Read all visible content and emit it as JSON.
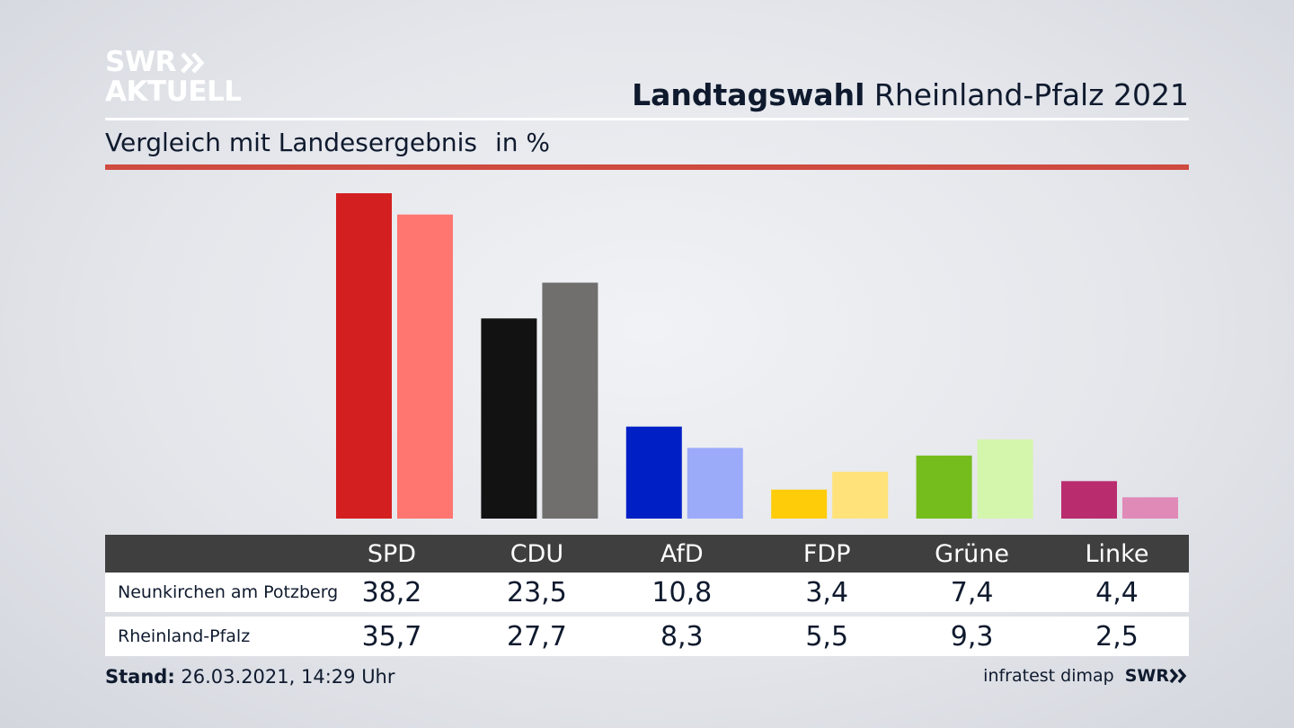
{
  "logo": {
    "line1": "SWR",
    "line2": "AKTUELL"
  },
  "header": {
    "title_bold": "Landtagswahl",
    "title_rest": "Rheinland-Pfalz 2021"
  },
  "subtitle": {
    "text": "Vergleich mit Landesergebnis",
    "unit": "in %"
  },
  "colors": {
    "SPD": [
      "#d41f21",
      "#ff7570"
    ],
    "CDU": [
      "#121212",
      "#706f6e"
    ],
    "AfD": [
      "#0020c6",
      "#9caafa"
    ],
    "FDP": [
      "#ffcc0a",
      "#ffe27a"
    ],
    "Grüne": [
      "#75bd1d",
      "#d4f5ac"
    ],
    "Linke": [
      "#b92d6f",
      "#e08ab8"
    ]
  },
  "chart_data": {
    "type": "bar",
    "categories": [
      "SPD",
      "CDU",
      "AfD",
      "FDP",
      "Grüne",
      "Linke"
    ],
    "series": [
      {
        "name": "Neunkirchen am Potzberg",
        "values": [
          38.2,
          23.5,
          10.8,
          3.4,
          7.4,
          4.4
        ]
      },
      {
        "name": "Rheinland-Pfalz",
        "values": [
          35.7,
          27.7,
          8.3,
          5.5,
          9.3,
          2.5
        ]
      }
    ],
    "title": "Landtagswahl Rheinland-Pfalz 2021",
    "subtitle": "Vergleich mit Landesergebnis",
    "ylabel": "in %",
    "ylim": [
      0,
      38.2
    ],
    "grid": false,
    "legend": "table below"
  },
  "table": {
    "headers": [
      "SPD",
      "CDU",
      "AfD",
      "FDP",
      "Grüne",
      "Linke"
    ],
    "rows": [
      {
        "label": "Neunkirchen am Potzberg",
        "values": [
          "38,2",
          "23,5",
          "10,8",
          "3,4",
          "7,4",
          "4,4"
        ]
      },
      {
        "label": "Rheinland-Pfalz",
        "values": [
          "35,7",
          "27,7",
          "8,3",
          "5,5",
          "9,3",
          "2,5"
        ]
      }
    ]
  },
  "footer": {
    "stand_label": "Stand:",
    "stand_value": "26.03.2021, 14:29 Uhr",
    "source": "infratest dimap",
    "brand": "SWR"
  }
}
